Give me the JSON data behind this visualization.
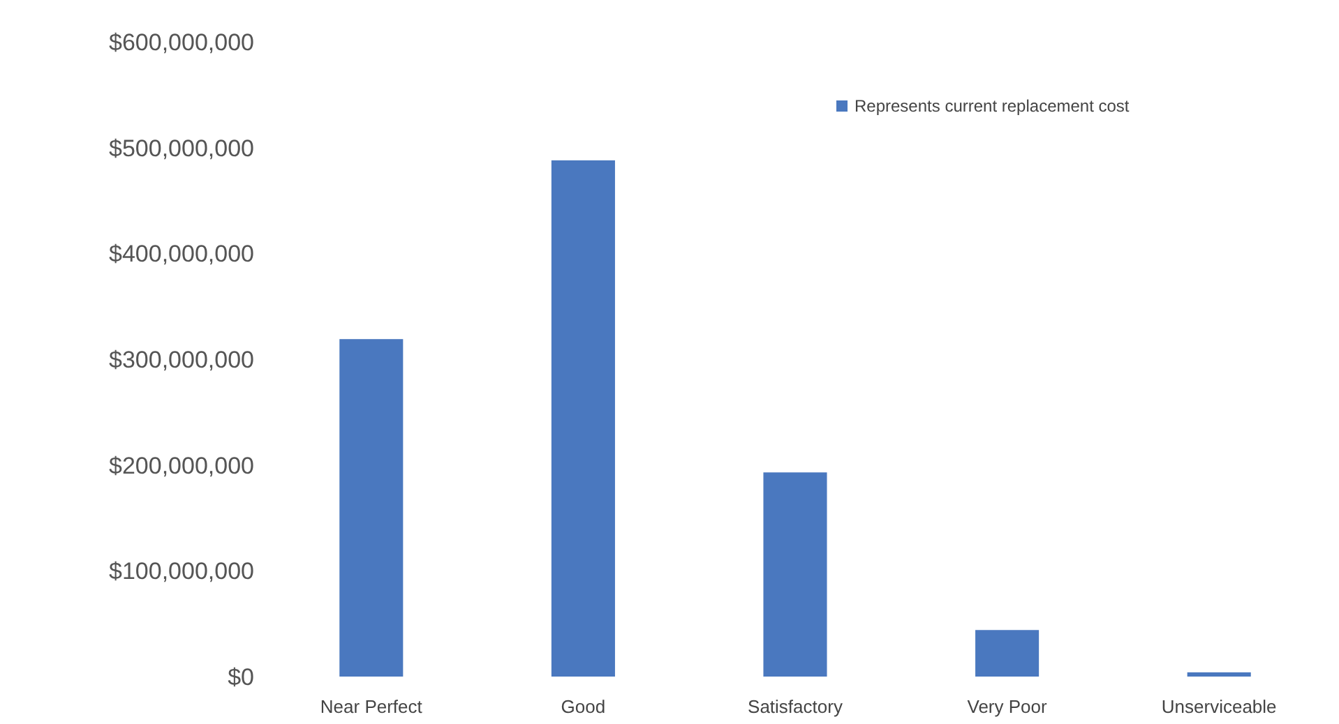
{
  "chart_data": {
    "type": "bar",
    "categories": [
      "Near Perfect",
      "Good",
      "Satisfactory",
      "Very Poor",
      "Unserviceable"
    ],
    "series": [
      {
        "name": "Represents current replacement cost",
        "color": "#4a78bf",
        "values": [
          319000000,
          488000000,
          193000000,
          44000000,
          4000000
        ]
      }
    ],
    "ylim": [
      0,
      600000000
    ],
    "yticks": [
      {
        "value": 0,
        "label": "$0"
      },
      {
        "value": 100000000,
        "label": "$100,000,000"
      },
      {
        "value": 200000000,
        "label": "$200,000,000"
      },
      {
        "value": 300000000,
        "label": "$300,000,000"
      },
      {
        "value": 400000000,
        "label": "$400,000,000"
      },
      {
        "value": 500000000,
        "label": "$500,000,000"
      },
      {
        "value": 600000000,
        "label": "$600,000,000"
      }
    ],
    "grid": false,
    "legend": "top right"
  }
}
